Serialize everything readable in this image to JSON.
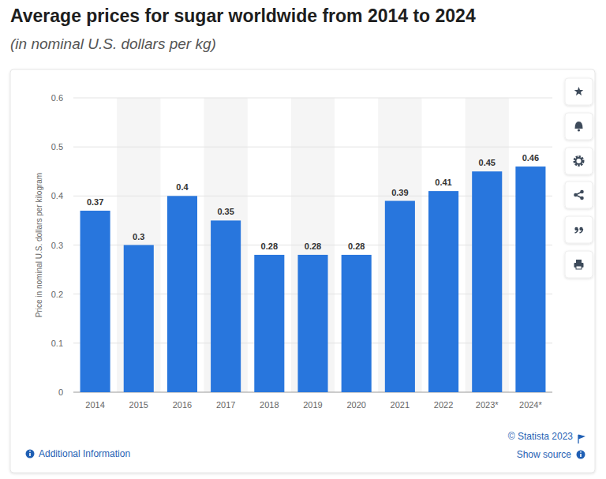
{
  "chart_data": {
    "type": "bar",
    "title": "Average prices for sugar worldwide from 2014 to 2024",
    "subtitle": "(in nominal U.S. dollars per kg)",
    "y_label": "Price in nominal U.S. dollars per kilogram",
    "categories": [
      "2014",
      "2015",
      "2016",
      "2017",
      "2018",
      "2019",
      "2020",
      "2021",
      "2022",
      "2023*",
      "2024*"
    ],
    "values": [
      0.37,
      0.3,
      0.4,
      0.35,
      0.28,
      0.28,
      0.28,
      0.39,
      0.41,
      0.45,
      0.46
    ],
    "color": "#2876dd",
    "ylim": [
      0,
      0.6
    ],
    "yticks": [
      0,
      0.1,
      0.2,
      0.3,
      0.4,
      0.5,
      0.6
    ],
    "grid": true,
    "data_labels": true
  },
  "footer": {
    "credit": "© Statista 2023",
    "additional_info": "Additional Information",
    "show_source": "Show source"
  }
}
